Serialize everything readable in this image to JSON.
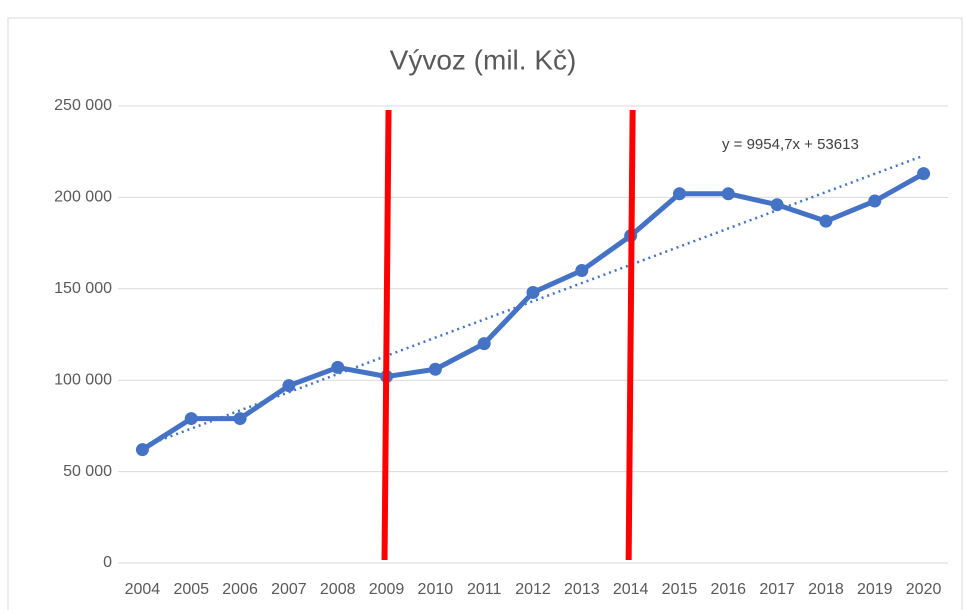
{
  "chart_data": {
    "type": "line",
    "title": "Vývoz (mil. Kč)",
    "categories": [
      "2004",
      "2005",
      "2006",
      "2007",
      "2008",
      "2009",
      "2010",
      "2011",
      "2012",
      "2013",
      "2014",
      "2015",
      "2016",
      "2017",
      "2018",
      "2019",
      "2020"
    ],
    "series": [
      {
        "name": "Vývoz",
        "color": "#4472c4",
        "values": [
          62000,
          79000,
          79000,
          97000,
          107000,
          102000,
          106000,
          120000,
          148000,
          160000,
          179000,
          202000,
          202000,
          196000,
          187000,
          198000,
          213000
        ]
      }
    ],
    "trendline": {
      "label": "y = 9954,7x + 53613",
      "slope": 9954.7,
      "intercept": 53613,
      "color": "#4472c4"
    },
    "vertical_lines": {
      "categories": [
        "2009",
        "2014"
      ],
      "color": "#ff0000"
    },
    "ylim": [
      0,
      250000
    ],
    "yticks": [
      0,
      {
        "value": 50000,
        "label": "50 000"
      },
      {
        "value": 100000,
        "label": "100 000"
      },
      {
        "value": 150000,
        "label": "150 000"
      },
      {
        "value": 200000,
        "label": "200 000"
      },
      {
        "value": 250000,
        "label": "250 000"
      }
    ],
    "grid": true
  }
}
